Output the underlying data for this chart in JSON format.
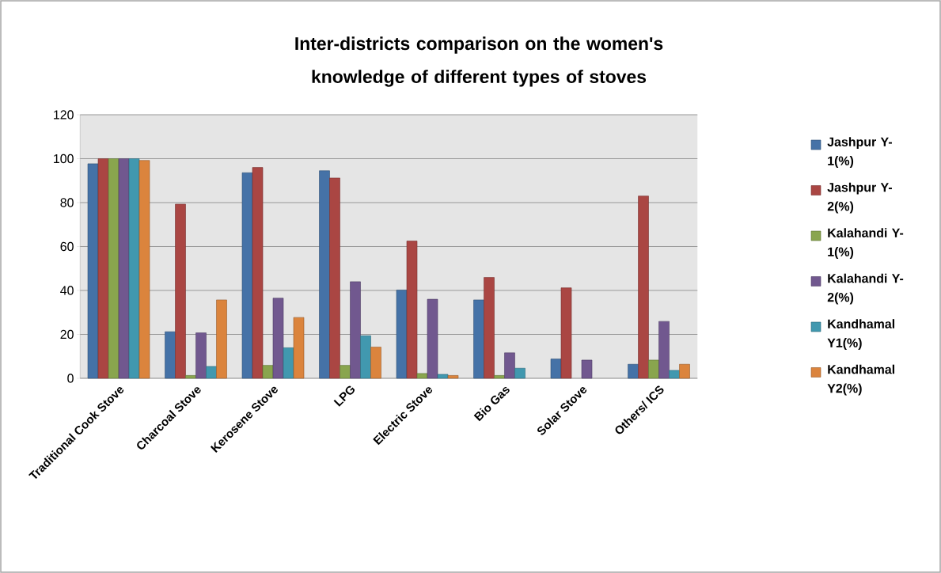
{
  "chart_data": {
    "type": "bar",
    "title": "Inter-districts comparison on the women's knowledge of different types of stoves",
    "categories": [
      "Traditional Cook Stove",
      "Charcoal Stove",
      "Kerosene Stove",
      "LPG",
      "Electric Stove",
      "Bio Gas",
      "Solar Stove",
      "Others/ ICS"
    ],
    "series": [
      {
        "name": "Jashpur  Y-1(%)",
        "color": "#4572a7",
        "values": [
          97.7,
          21.2,
          93.6,
          94.5,
          40.2,
          35.7,
          8.8,
          6.4
        ]
      },
      {
        "name": "Jashpur  Y-2(%)",
        "color": "#aa4643",
        "values": [
          100,
          79.3,
          96,
          91.2,
          62.5,
          45.9,
          41.2,
          83
        ]
      },
      {
        "name": "Kalahandi  Y-1(%)",
        "color": "#89a54e",
        "values": [
          100,
          1.3,
          5.9,
          5.9,
          2.2,
          1.3,
          null,
          8.3
        ]
      },
      {
        "name": "Kalahandi  Y-2(%)",
        "color": "#71588f",
        "values": [
          100,
          20.7,
          36.5,
          44,
          36,
          11.6,
          8.3,
          25.9
        ]
      },
      {
        "name": "Kandhamal Y1(%)",
        "color": "#4198af",
        "values": [
          100,
          5.4,
          13.9,
          19.4,
          1.8,
          4.6,
          null,
          3.6
        ]
      },
      {
        "name": "Kandhamal Y2(%)",
        "color": "#db843d",
        "values": [
          99.2,
          35.7,
          27.7,
          14.2,
          1.3,
          null,
          null,
          6.4
        ]
      }
    ],
    "ylim": [
      0,
      120
    ],
    "yticks": [
      0,
      20,
      40,
      60,
      80,
      100,
      120
    ],
    "grid": "y",
    "legend": "right"
  }
}
